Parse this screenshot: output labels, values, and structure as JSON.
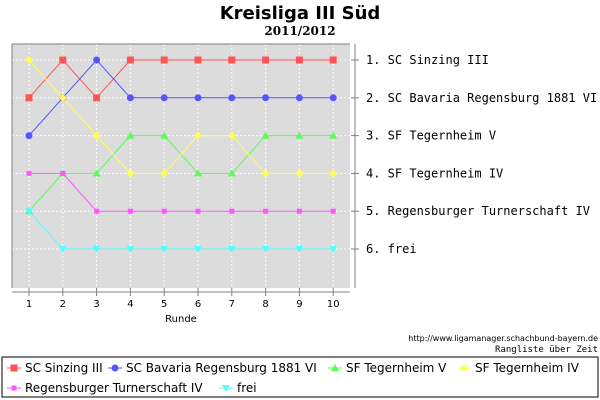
{
  "title": "Kreisliga III Süd",
  "subtitle": "2011/2012",
  "source_url": "http://www.ligamanager.schachbund-bayern.de",
  "caption": "Rangliste über Zeit",
  "chart_data": {
    "type": "line",
    "x": [
      1,
      2,
      3,
      4,
      5,
      6,
      7,
      8,
      9,
      10
    ],
    "xlabel": "Runde",
    "ylabel": "",
    "ylim": [
      1,
      6
    ],
    "y_inverted": true,
    "grid": true,
    "legend_position": "bottom",
    "rank_labels": [
      "1. SC Sinzing III",
      "2. SC Bavaria Regensburg 1881 VI",
      "3. SF Tegernheim V",
      "4. SF Tegernheim IV",
      "5. Regensburger Turnerschaft IV",
      "6. frei"
    ],
    "series": [
      {
        "name": "SC Sinzing III",
        "marker": "square",
        "color": "#ff5555",
        "values": [
          2,
          1,
          2,
          1,
          1,
          1,
          1,
          1,
          1,
          1
        ]
      },
      {
        "name": "SC Bavaria Regensburg 1881 VI",
        "marker": "circle",
        "color": "#5555ff",
        "values": [
          3,
          2,
          1,
          2,
          2,
          2,
          2,
          2,
          2,
          2
        ]
      },
      {
        "name": "SF Tegernheim V",
        "marker": "triangle-up",
        "color": "#55ff55",
        "values": [
          5,
          4,
          4,
          3,
          3,
          4,
          4,
          3,
          3,
          3
        ]
      },
      {
        "name": "SF Tegernheim IV",
        "marker": "diamond",
        "color": "#ffff55",
        "values": [
          1,
          2,
          3,
          4,
          4,
          3,
          3,
          4,
          4,
          4
        ]
      },
      {
        "name": "Regensburger Turnerschaft IV",
        "marker": "square-small",
        "color": "#ff55ff",
        "values": [
          4,
          4,
          5,
          5,
          5,
          5,
          5,
          5,
          5,
          5
        ]
      },
      {
        "name": "frei",
        "marker": "triangle-down",
        "color": "#55ffff",
        "values": [
          5,
          6,
          6,
          6,
          6,
          6,
          6,
          6,
          6,
          6
        ]
      }
    ]
  }
}
